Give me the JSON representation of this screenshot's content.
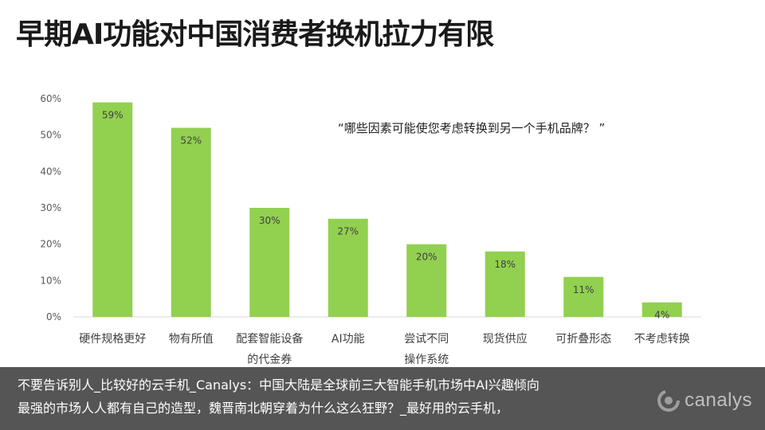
{
  "title": "早期AI功能对中国消费者换机拉力有限",
  "question": "“哪些因素可能使您考虑转换到另一个手机品牌？  ”",
  "colors": {
    "bar": "#92d050",
    "grid": "#d9d9d9",
    "caption_bg": "#141414"
  },
  "chart_data": {
    "type": "bar",
    "categories": [
      "硬件规格更好",
      "物有所值",
      "配套智能设备的代金券",
      "AI功能",
      "尝试不同操作系统",
      "现货供应",
      "可折叠形态",
      "不考虑转换"
    ],
    "category_lines": [
      [
        "硬件规格更好"
      ],
      [
        "物有所值"
      ],
      [
        "配套智能设备",
        "的代金券"
      ],
      [
        "AI功能"
      ],
      [
        "尝试不同",
        "操作系统"
      ],
      [
        "现货供应"
      ],
      [
        "可折叠形态"
      ],
      [
        "不考虑转换"
      ]
    ],
    "values": [
      59,
      52,
      30,
      27,
      20,
      18,
      11,
      4
    ],
    "value_labels": [
      "59%",
      "52%",
      "30%",
      "27%",
      "20%",
      "18%",
      "11%",
      "4%"
    ],
    "ylim": [
      0,
      60
    ],
    "yticks": [
      0,
      10,
      20,
      30,
      40,
      50,
      60
    ],
    "ytick_labels": [
      "0%",
      "10%",
      "20%",
      "30%",
      "40%",
      "50%",
      "60%"
    ],
    "grid": false,
    "xlabel": "",
    "ylabel": ""
  },
  "caption": {
    "line1": "不要告诉别人_比较好的云手机_Canalys：中国大陆是全球前三大智能手机市场中AI兴趣倾向",
    "line2": "最强的市场人人都有自己的造型，魏晋南北朝穿着为什么这么狂野？_最好用的云手机，"
  },
  "logo": {
    "text": "canalys",
    "icon": "canalys-swirl-icon"
  }
}
